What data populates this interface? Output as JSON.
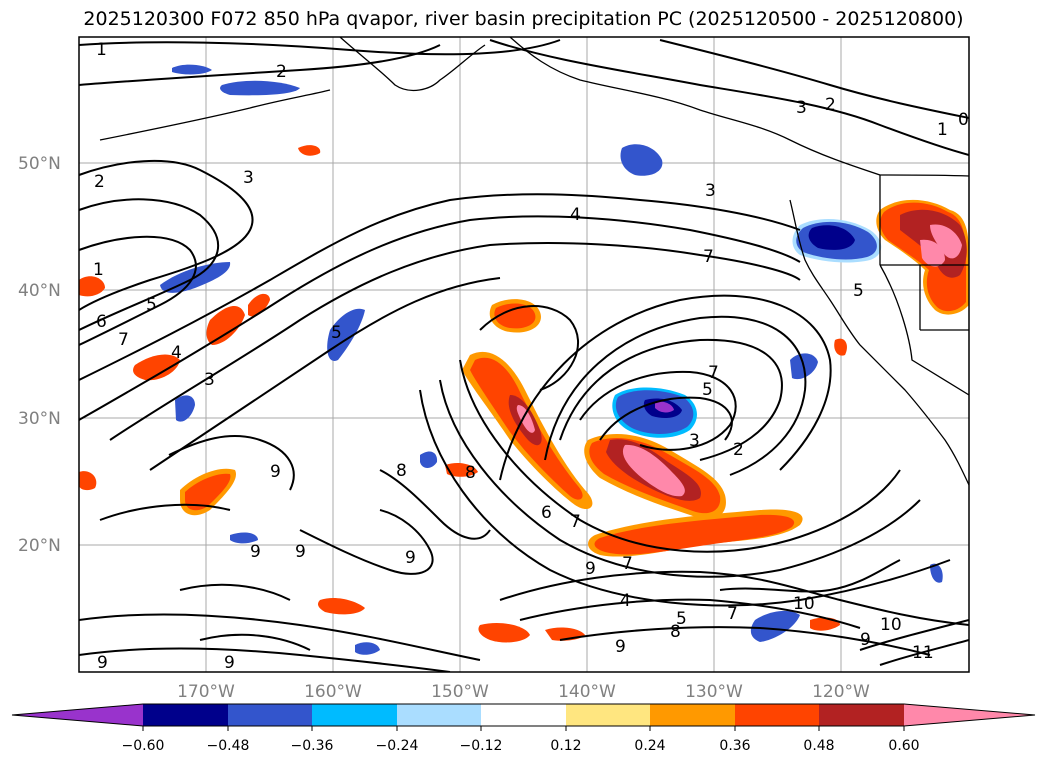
{
  "title": "2025120300 F072 850 hPa qvapor, river basin precipitation PC (2025120500 - 2025120800)",
  "map": {
    "lat_labels": [
      "50°N",
      "40°N",
      "30°N",
      "20°N"
    ],
    "lon_labels": [
      "170°W",
      "160°W",
      "150°W",
      "140°W",
      "130°W",
      "120°W"
    ],
    "contour_labels": [
      "1",
      "2",
      "3",
      "4",
      "7",
      "3",
      "2",
      "1",
      "0",
      "2",
      "3",
      "1",
      "5",
      "6",
      "7",
      "4",
      "3",
      "5",
      "3",
      "2",
      "7",
      "5",
      "9",
      "8",
      "8",
      "9",
      "9",
      "9",
      "9",
      "6",
      "7",
      "7",
      "9",
      "4",
      "5",
      "8",
      "7",
      "10",
      "10",
      "9",
      "11",
      "9",
      "9",
      "5"
    ]
  },
  "colorbar": {
    "ticks": [
      "−0.60",
      "−0.48",
      "−0.36",
      "−0.24",
      "−0.12",
      "0.12",
      "0.24",
      "0.36",
      "0.48",
      "0.60"
    ],
    "colors": [
      "#9933cc",
      "#00008b",
      "#3355cc",
      "#00bbff",
      "#aaddff",
      "#ffffff",
      "#ffe680",
      "#ff9900",
      "#ff4400",
      "#b22222",
      "#ff88aa"
    ]
  }
}
